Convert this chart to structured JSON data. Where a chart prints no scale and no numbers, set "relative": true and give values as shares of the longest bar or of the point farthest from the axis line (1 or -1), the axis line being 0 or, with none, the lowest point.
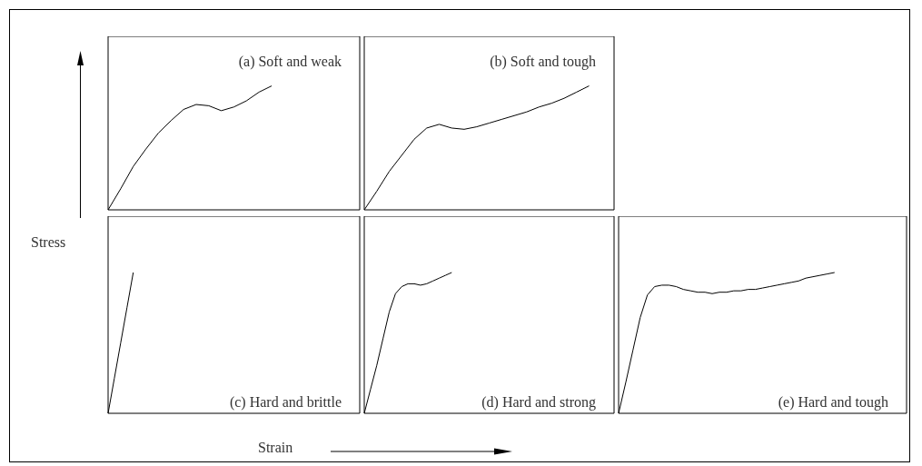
{
  "chart_data": [
    {
      "type": "line",
      "title": "(a) Soft and weak",
      "relative": true,
      "grid": false,
      "marker": "none",
      "color": "#000000",
      "categories": [
        null,
        null,
        null,
        null,
        null,
        null,
        null,
        null,
        null,
        null,
        null,
        null,
        null,
        null,
        null,
        null,
        null,
        null,
        null,
        null,
        null
      ],
      "values": [
        0,
        0.17,
        0.35,
        0.49,
        0.62,
        0.72,
        0.81,
        0.85,
        0.84,
        0.8,
        0.83,
        0.88,
        0.95,
        1,
        null,
        null,
        null,
        null,
        null,
        null,
        null
      ]
    },
    {
      "type": "line",
      "title": "(b) Soft and tough",
      "relative": true,
      "grid": false,
      "marker": "none",
      "color": "#000000",
      "categories": [
        null,
        null,
        null,
        null,
        null,
        null,
        null,
        null,
        null,
        null,
        null,
        null,
        null,
        null,
        null,
        null,
        null,
        null,
        null,
        null,
        null
      ],
      "values": [
        0,
        0.15,
        0.31,
        0.44,
        0.57,
        0.66,
        0.69,
        0.66,
        0.65,
        0.67,
        0.7,
        0.73,
        0.76,
        0.79,
        0.83,
        0.86,
        0.9,
        0.95,
        1,
        null,
        null
      ]
    },
    {
      "type": "line",
      "title": "(c) Hard and brittle",
      "xlabel": "Strain",
      "ylabel": "Stress",
      "relative": true,
      "grid": false,
      "marker": "none",
      "color": "#000000",
      "categories": [
        null,
        null,
        null,
        null,
        null,
        null,
        null,
        null,
        null,
        null,
        null,
        null,
        null,
        null,
        null,
        null,
        null,
        null,
        null,
        null,
        null,
        null,
        null,
        null,
        null,
        null,
        null,
        null,
        null,
        null,
        null,
        null,
        null,
        null,
        null,
        null,
        null,
        null,
        null,
        null,
        null
      ],
      "values": [
        0,
        0.25,
        0.5,
        0.75,
        1,
        null,
        null,
        null,
        null,
        null,
        null,
        null,
        null,
        null,
        null,
        null,
        null,
        null,
        null,
        null,
        null,
        null,
        null,
        null,
        null,
        null,
        null,
        null,
        null,
        null,
        null,
        null,
        null,
        null,
        null,
        null,
        null,
        null,
        null,
        null,
        null
      ]
    },
    {
      "type": "line",
      "title": "(d) Hard and strong",
      "relative": true,
      "grid": false,
      "marker": "none",
      "color": "#000000",
      "categories": [
        null,
        null,
        null,
        null,
        null,
        null,
        null,
        null,
        null,
        null,
        null,
        null,
        null,
        null,
        null,
        null,
        null,
        null,
        null,
        null,
        null,
        null,
        null,
        null,
        null,
        null,
        null,
        null,
        null,
        null,
        null,
        null,
        null,
        null,
        null,
        null,
        null,
        null,
        null,
        null,
        null
      ],
      "values": [
        0,
        0.17,
        0.34,
        0.53,
        0.72,
        0.85,
        0.9,
        0.92,
        0.92,
        0.91,
        0.92,
        0.94,
        0.96,
        0.98,
        1,
        null,
        null,
        null,
        null,
        null,
        null,
        null,
        null,
        null,
        null,
        null,
        null,
        null,
        null,
        null,
        null,
        null,
        null,
        null,
        null,
        null,
        null,
        null,
        null,
        null,
        null
      ]
    },
    {
      "type": "line",
      "title": "(e) Hard and tough",
      "relative": true,
      "grid": false,
      "marker": "none",
      "color": "#000000",
      "categories": [
        null,
        null,
        null,
        null,
        null,
        null,
        null,
        null,
        null,
        null,
        null,
        null,
        null,
        null,
        null,
        null,
        null,
        null,
        null,
        null,
        null,
        null,
        null,
        null,
        null,
        null,
        null,
        null,
        null,
        null,
        null,
        null,
        null,
        null,
        null,
        null,
        null,
        null,
        null,
        null,
        null
      ],
      "values": [
        0,
        0.22,
        0.45,
        0.68,
        0.84,
        0.9,
        0.91,
        0.91,
        0.9,
        0.88,
        0.87,
        0.86,
        0.86,
        0.85,
        0.86,
        0.86,
        0.87,
        0.87,
        0.88,
        0.88,
        0.89,
        0.9,
        0.91,
        0.92,
        0.93,
        0.94,
        0.96,
        0.97,
        0.98,
        0.99,
        1,
        null,
        null,
        null,
        null,
        null,
        null,
        null,
        null,
        null,
        null
      ]
    }
  ]
}
